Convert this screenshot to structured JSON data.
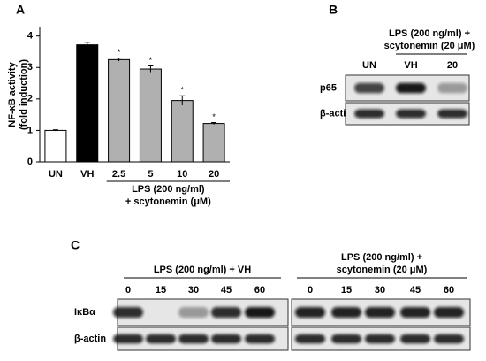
{
  "chart_data": {
    "type": "bar",
    "panel_label": "A",
    "y_label": [
      "NF-κB activity",
      "(fold induction)"
    ],
    "x_label": [
      "LPS (200 ng/ml)",
      "+ scytonemin (μM)"
    ],
    "categories": [
      "UN",
      "VH",
      "2.5",
      "5",
      "10",
      "20"
    ],
    "values": [
      1.0,
      3.72,
      3.25,
      2.95,
      1.95,
      1.22
    ],
    "errors": [
      0.02,
      0.08,
      0.05,
      0.1,
      0.15,
      0.03
    ],
    "colors": [
      "#ffffff",
      "#000000",
      "#b0b0b0",
      "#b0b0b0",
      "#b0b0b0",
      "#b0b0b0"
    ],
    "significance": [
      null,
      null,
      "*",
      "*",
      "*",
      "*"
    ],
    "ylim": [
      0,
      4.3
    ],
    "yticks": [
      0,
      1,
      2,
      3,
      4
    ],
    "grid": false
  },
  "panel_b": {
    "label": "B",
    "header": [
      "LPS (200 ng/ml) +",
      "scytonemin (20 μM)"
    ],
    "lanes": [
      "UN",
      "VH",
      "20"
    ],
    "rows": [
      "p65",
      "β-actin"
    ]
  },
  "panel_c": {
    "label": "C",
    "groups": [
      {
        "header": [
          "LPS (200 ng/ml) + VH"
        ],
        "lanes": [
          "0",
          "15",
          "30",
          "45",
          "60"
        ]
      },
      {
        "header": [
          "LPS (200 ng/ml) +",
          "scytonemin (20 μM)"
        ],
        "lanes": [
          "0",
          "15",
          "30",
          "45",
          "60"
        ]
      }
    ],
    "rows": [
      "IκBα",
      "β-actin"
    ]
  }
}
